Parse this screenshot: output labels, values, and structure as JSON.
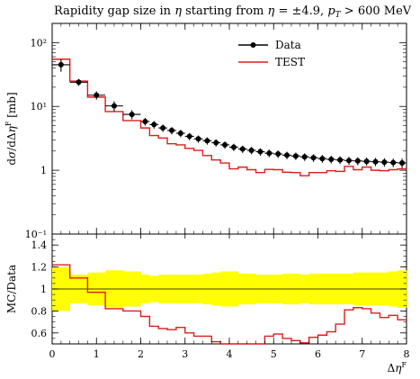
{
  "chart_data": [
    {
      "type": "step-histogram",
      "title": "Rapidity gap size in η starting from η = ±4.9, pT > 600 MeV",
      "xlabel": "",
      "ylabel": "dσ/dΔη^F [mb]",
      "yscale": "log",
      "ylim": [
        0.1,
        200
      ],
      "xlim": [
        0,
        8
      ],
      "y_tick_labels": [
        "10⁻¹",
        "1",
        "10¹",
        "10²"
      ],
      "legend_position": "top-right",
      "series": [
        {
          "name": "Data",
          "style": "points-with-error-bars",
          "color": "#000000",
          "bin_edges": [
            0,
            0.4,
            0.8,
            1.2,
            1.6,
            2.0,
            2.2,
            2.4,
            2.6,
            2.8,
            3.0,
            3.2,
            3.4,
            3.6,
            3.8,
            4.0,
            4.2,
            4.4,
            4.6,
            4.8,
            5.0,
            5.2,
            5.4,
            5.6,
            5.8,
            6.0,
            6.2,
            6.4,
            6.6,
            6.8,
            7.0,
            7.2,
            7.4,
            7.6,
            7.8,
            8.0
          ],
          "values": [
            45,
            24,
            15,
            10.2,
            7.5,
            5.8,
            5.2,
            4.6,
            4.2,
            3.8,
            3.4,
            3.1,
            2.9,
            2.7,
            2.5,
            2.3,
            2.15,
            2.05,
            1.95,
            1.85,
            1.8,
            1.72,
            1.67,
            1.62,
            1.57,
            1.52,
            1.48,
            1.45,
            1.42,
            1.4,
            1.38,
            1.36,
            1.34,
            1.32,
            1.3
          ],
          "y_errors": [
            10,
            3,
            2.2,
            1.8,
            1.2,
            0.8,
            0.7,
            0.6,
            0.55,
            0.5,
            0.45,
            0.4,
            0.38,
            0.35,
            0.32,
            0.3,
            0.28,
            0.27,
            0.26,
            0.25,
            0.24,
            0.23,
            0.22,
            0.22,
            0.21,
            0.21,
            0.2,
            0.2,
            0.2,
            0.2,
            0.2,
            0.2,
            0.2,
            0.2,
            0.22
          ]
        },
        {
          "name": "TEST",
          "style": "step-line",
          "color": "#dd1c1c",
          "bin_edges": [
            0,
            0.4,
            0.8,
            1.2,
            1.6,
            2.0,
            2.2,
            2.4,
            2.6,
            2.8,
            3.0,
            3.2,
            3.4,
            3.6,
            3.8,
            4.0,
            4.2,
            4.4,
            4.6,
            4.8,
            5.0,
            5.2,
            5.4,
            5.6,
            5.8,
            6.0,
            6.2,
            6.4,
            6.6,
            6.8,
            7.0,
            7.2,
            7.4,
            7.6,
            7.8,
            8.0
          ],
          "values": [
            55,
            25,
            14,
            8.3,
            6,
            4.6,
            3.5,
            3.2,
            2.6,
            2.5,
            2.2,
            2.05,
            1.7,
            1.45,
            1.3,
            1.05,
            1.12,
            1.02,
            0.92,
            1.03,
            1.02,
            0.93,
            0.92,
            0.82,
            0.92,
            0.92,
            0.98,
            0.96,
            1.15,
            1.02,
            1.12,
            1.0,
            0.98,
            1.02,
            1.05
          ]
        }
      ]
    },
    {
      "type": "ratio-step",
      "xlabel": "Δη^F",
      "ylabel": "MC/Data",
      "ylim": [
        0.5,
        1.5
      ],
      "xlim": [
        0,
        8
      ],
      "x_ticks": [
        0,
        1,
        2,
        3,
        4,
        5,
        6,
        7,
        8
      ],
      "y_ticks": [
        0.6,
        0.8,
        1,
        1.2,
        1.4
      ],
      "band_color": "#ffff00",
      "band_halfwidth": [
        0.2,
        0.13,
        0.15,
        0.17,
        0.16,
        0.13,
        0.12,
        0.13,
        0.13,
        0.13,
        0.13,
        0.13,
        0.14,
        0.15,
        0.16,
        0.16,
        0.14,
        0.14,
        0.13,
        0.13,
        0.13,
        0.14,
        0.14,
        0.13,
        0.14,
        0.14,
        0.14,
        0.14,
        0.14,
        0.15,
        0.15,
        0.15,
        0.15,
        0.16,
        0.17
      ],
      "ratio_values": [
        1.22,
        1.1,
        0.97,
        0.82,
        0.8,
        0.75,
        0.66,
        0.64,
        0.63,
        0.65,
        0.6,
        0.57,
        0.57,
        0.52,
        0.5,
        0.48,
        0.48,
        0.47,
        0.47,
        0.57,
        0.59,
        0.55,
        0.53,
        0.51,
        0.56,
        0.58,
        0.61,
        0.68,
        0.81,
        0.83,
        0.82,
        0.78,
        0.74,
        0.76,
        0.72
      ],
      "reference_line": 1
    }
  ]
}
